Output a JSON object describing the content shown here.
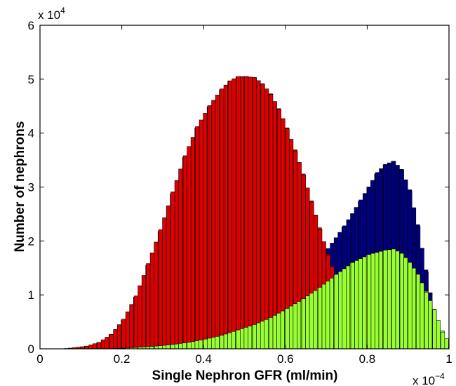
{
  "chart_data": {
    "type": "bar",
    "title": "",
    "xlabel": "Single Nephron GFR (ml/min)",
    "ylabel": "Number of nephrons",
    "x_multiplier_label": {
      "base": "x 10",
      "exponent": "−4"
    },
    "y_multiplier_label": {
      "base": "x 10",
      "exponent": "4"
    },
    "xlim": [
      0,
      1
    ],
    "ylim": [
      0,
      6
    ],
    "xticks": [
      0,
      0.2,
      0.4,
      0.6,
      0.8,
      1
    ],
    "xtick_labels": [
      "0",
      "0.2",
      "0.4",
      "0.6",
      "0.8",
      "1"
    ],
    "yticks": [
      0,
      1,
      2,
      3,
      4,
      5,
      6
    ],
    "ytick_labels": [
      "0",
      "1",
      "2",
      "3",
      "4",
      "5",
      "6"
    ],
    "grid": false,
    "legend": null,
    "overlay": true,
    "series": [
      {
        "color": "#00007f",
        "bins": [
          [
            0.11,
            0.0
          ],
          [
            0.16,
            0.01
          ],
          [
            0.21,
            0.02
          ],
          [
            0.25,
            0.05
          ],
          [
            0.3,
            0.09
          ],
          [
            0.34,
            0.14
          ],
          [
            0.38,
            0.21
          ],
          [
            0.42,
            0.3
          ],
          [
            0.46,
            0.42
          ],
          [
            0.5,
            0.56
          ],
          [
            0.54,
            0.75
          ],
          [
            0.58,
            0.97
          ],
          [
            0.62,
            1.22
          ],
          [
            0.66,
            1.53
          ],
          [
            0.7,
            1.86
          ],
          [
            0.74,
            2.28
          ],
          [
            0.78,
            2.76
          ],
          [
            0.82,
            3.27
          ],
          [
            0.84,
            3.42
          ],
          [
            0.86,
            3.48
          ],
          [
            0.88,
            3.32
          ],
          [
            0.9,
            2.93
          ],
          [
            0.92,
            2.27
          ],
          [
            0.94,
            1.42
          ],
          [
            0.96,
            0.62
          ],
          [
            0.98,
            0.18
          ],
          [
            1.0,
            0.02
          ]
        ]
      },
      {
        "color": "#dd0000",
        "bins": [
          [
            0.05,
            0.0
          ],
          [
            0.08,
            0.02
          ],
          [
            0.11,
            0.05
          ],
          [
            0.14,
            0.12
          ],
          [
            0.17,
            0.27
          ],
          [
            0.2,
            0.55
          ],
          [
            0.23,
            0.98
          ],
          [
            0.26,
            1.58
          ],
          [
            0.29,
            2.21
          ],
          [
            0.32,
            2.91
          ],
          [
            0.35,
            3.58
          ],
          [
            0.38,
            4.12
          ],
          [
            0.41,
            4.51
          ],
          [
            0.44,
            4.82
          ],
          [
            0.46,
            4.97
          ],
          [
            0.48,
            5.05
          ],
          [
            0.5,
            5.05
          ],
          [
            0.52,
            5.03
          ],
          [
            0.54,
            4.91
          ],
          [
            0.56,
            4.72
          ],
          [
            0.58,
            4.44
          ],
          [
            0.6,
            4.08
          ],
          [
            0.62,
            3.67
          ],
          [
            0.64,
            3.22
          ],
          [
            0.66,
            2.72
          ],
          [
            0.68,
            2.22
          ],
          [
            0.7,
            1.73
          ],
          [
            0.72,
            1.3
          ]
        ]
      },
      {
        "color": "#99ff33",
        "bins": [
          [
            0.16,
            0.0
          ],
          [
            0.2,
            0.01
          ],
          [
            0.24,
            0.03
          ],
          [
            0.28,
            0.05
          ],
          [
            0.32,
            0.08
          ],
          [
            0.36,
            0.12
          ],
          [
            0.4,
            0.18
          ],
          [
            0.44,
            0.25
          ],
          [
            0.48,
            0.35
          ],
          [
            0.52,
            0.45
          ],
          [
            0.56,
            0.58
          ],
          [
            0.6,
            0.75
          ],
          [
            0.64,
            0.93
          ],
          [
            0.68,
            1.14
          ],
          [
            0.72,
            1.38
          ],
          [
            0.76,
            1.6
          ],
          [
            0.8,
            1.75
          ],
          [
            0.84,
            1.83
          ],
          [
            0.86,
            1.85
          ],
          [
            0.88,
            1.77
          ],
          [
            0.9,
            1.6
          ],
          [
            0.92,
            1.38
          ],
          [
            0.94,
            1.05
          ],
          [
            0.96,
            0.72
          ],
          [
            0.98,
            0.31
          ],
          [
            1.0,
            0.05
          ]
        ]
      }
    ]
  }
}
